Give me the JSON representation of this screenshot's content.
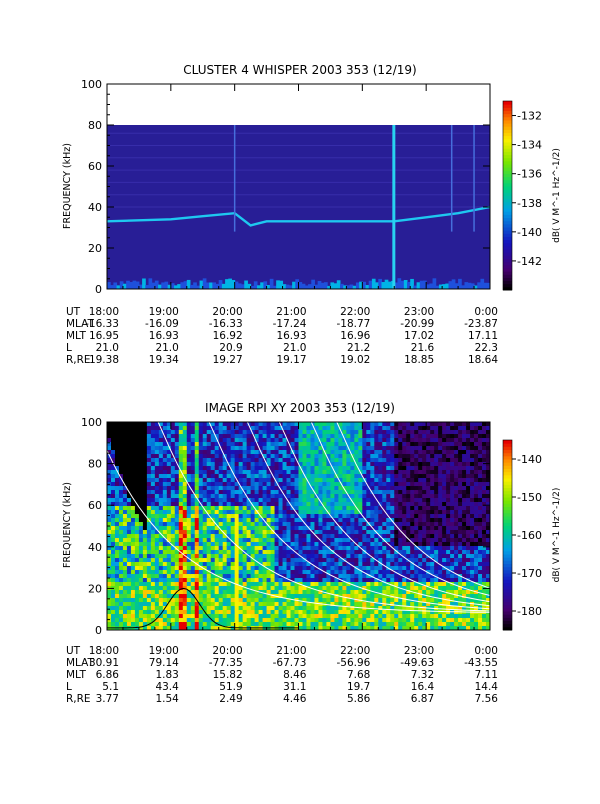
{
  "chart_data": [
    {
      "type": "heatmap",
      "title": "CLUSTER 4 WHISPER 2003 353 (12/19)",
      "ylabel": "FREQUENCY (kHz)",
      "ylim": [
        0,
        100
      ],
      "yticks": [
        "0",
        "20",
        "40",
        "60",
        "80",
        "100"
      ],
      "xlim": [
        "18:00",
        "0:00"
      ],
      "xticks": [
        "18:00",
        "19:00",
        "20:00",
        "21:00",
        "22:00",
        "23:00",
        "0:00"
      ],
      "data_ceiling_khz": 80,
      "plasma_line_khz": {
        "times": [
          "18:00",
          "18:30",
          "19:00",
          "19:30",
          "20:00",
          "20:15",
          "20:30",
          "21:00",
          "21:30",
          "22:00",
          "22:30",
          "23:00",
          "23:30",
          "0:00"
        ],
        "values": [
          33,
          33.5,
          34,
          35.5,
          37,
          31,
          33,
          33,
          33,
          33,
          33,
          35,
          37,
          40
        ]
      },
      "colorbar": {
        "label": "dB( V M^-1 Hz^-1/2)",
        "ticks": [
          "-132",
          "-134",
          "-136",
          "-138",
          "-140",
          "-142"
        ],
        "range": [
          -144,
          -131
        ]
      },
      "ephemeris": {
        "labels": [
          "UT",
          "MLAT",
          "MLT",
          "L",
          "R,RE"
        ],
        "rows": [
          [
            "18:00",
            "19:00",
            "20:00",
            "21:00",
            "22:00",
            "23:00",
            "0:00"
          ],
          [
            "-16.33",
            "-16.09",
            "-16.33",
            "-17.24",
            "-18.77",
            "-20.99",
            "-23.87"
          ],
          [
            "16.95",
            "16.93",
            "16.92",
            "16.93",
            "16.96",
            "17.02",
            "17.11"
          ],
          [
            "21.0",
            "21.0",
            "20.9",
            "21.0",
            "21.2",
            "21.6",
            "22.3"
          ],
          [
            "19.38",
            "19.34",
            "19.27",
            "19.17",
            "19.02",
            "18.85",
            "18.64"
          ]
        ]
      }
    },
    {
      "type": "heatmap",
      "title": "IMAGE RPI XY 2003 353 (12/19)",
      "ylabel": "FREQUENCY (kHz)",
      "ylim": [
        0,
        100
      ],
      "yticks": [
        "0",
        "20",
        "40",
        "60",
        "80",
        "100"
      ],
      "xlim": [
        "18:00",
        "0:00"
      ],
      "xticks": [
        "18:00",
        "19:00",
        "20:00",
        "21:00",
        "22:00",
        "23:00",
        "0:00"
      ],
      "colorbar": {
        "label": "dB( V M^-1 Hz^-1/2)",
        "ticks": [
          "-140",
          "-150",
          "-160",
          "-170",
          "-180"
        ],
        "range": [
          -185,
          -135
        ]
      },
      "ephemeris": {
        "labels": [
          "UT",
          "MLAT",
          "MLT",
          "L",
          "R,RE"
        ],
        "rows": [
          [
            "18:00",
            "19:00",
            "20:00",
            "21:00",
            "22:00",
            "23:00",
            "0:00"
          ],
          [
            "30.91",
            "79.14",
            "-77.35",
            "-67.73",
            "-56.96",
            "-49.63",
            "-43.55"
          ],
          [
            "6.86",
            "1.83",
            "15.82",
            "8.46",
            "7.68",
            "7.32",
            "7.11"
          ],
          [
            "5.1",
            "43.4",
            "51.9",
            "31.1",
            "19.7",
            "16.4",
            "14.4"
          ],
          [
            "3.77",
            "1.54",
            "2.49",
            "4.46",
            "5.86",
            "6.87",
            "7.56"
          ]
        ]
      }
    }
  ]
}
